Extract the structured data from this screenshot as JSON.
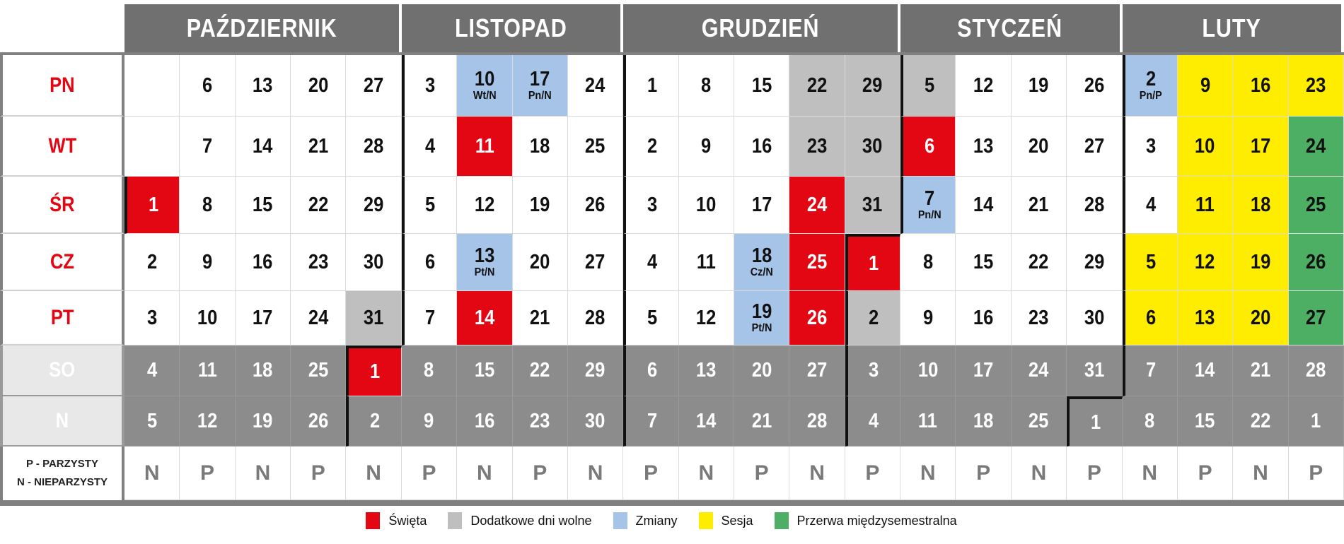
{
  "months": [
    {
      "name": "PAŹDZIERNIK",
      "span": 5
    },
    {
      "name": "LISTOPAD",
      "span": 4
    },
    {
      "name": "GRUDZIEŃ",
      "span": 5
    },
    {
      "name": "STYCZEŃ",
      "span": 4
    },
    {
      "name": "LUTY",
      "span": 4
    }
  ],
  "weekdays": [
    "PN",
    "WT",
    "ŚR",
    "CZ",
    "PT",
    "SO",
    "N"
  ],
  "parity_label": [
    "P - PARZYSTY",
    "N - NIEPARZYSTY"
  ],
  "colors": {
    "red": "#e30613",
    "gray": "#bfbfbf",
    "blue": "#a6c3e8",
    "yellow": "#ffed00",
    "green": "#4caf64",
    "weekend": "#8c8c8c",
    "header": "#707070"
  },
  "columns": [
    {
      "parity": "N",
      "days": [
        {
          "d": "",
          "m": 0
        },
        {
          "d": "",
          "m": 0
        },
        {
          "d": "1",
          "m": 0,
          "c": "red"
        },
        {
          "d": "2",
          "m": 0
        },
        {
          "d": "3",
          "m": 0
        },
        {
          "d": "4",
          "m": 0
        },
        {
          "d": "5",
          "m": 0
        }
      ]
    },
    {
      "parity": "P",
      "days": [
        {
          "d": "6",
          "m": 0
        },
        {
          "d": "7",
          "m": 0
        },
        {
          "d": "8",
          "m": 0
        },
        {
          "d": "9",
          "m": 0
        },
        {
          "d": "10",
          "m": 0
        },
        {
          "d": "11",
          "m": 0
        },
        {
          "d": "12",
          "m": 0
        }
      ]
    },
    {
      "parity": "N",
      "days": [
        {
          "d": "13",
          "m": 0
        },
        {
          "d": "14",
          "m": 0
        },
        {
          "d": "15",
          "m": 0
        },
        {
          "d": "16",
          "m": 0
        },
        {
          "d": "17",
          "m": 0
        },
        {
          "d": "18",
          "m": 0
        },
        {
          "d": "19",
          "m": 0
        }
      ]
    },
    {
      "parity": "P",
      "days": [
        {
          "d": "20",
          "m": 0
        },
        {
          "d": "21",
          "m": 0
        },
        {
          "d": "22",
          "m": 0
        },
        {
          "d": "23",
          "m": 0
        },
        {
          "d": "24",
          "m": 0
        },
        {
          "d": "25",
          "m": 0
        },
        {
          "d": "26",
          "m": 0
        }
      ]
    },
    {
      "parity": "N",
      "days": [
        {
          "d": "27",
          "m": 0
        },
        {
          "d": "28",
          "m": 0
        },
        {
          "d": "29",
          "m": 0
        },
        {
          "d": "30",
          "m": 0
        },
        {
          "d": "31",
          "m": 0,
          "c": "gray"
        },
        {
          "d": "1",
          "m": 1,
          "c": "red"
        },
        {
          "d": "2",
          "m": 1
        }
      ]
    },
    {
      "parity": "P",
      "days": [
        {
          "d": "3",
          "m": 1
        },
        {
          "d": "4",
          "m": 1
        },
        {
          "d": "5",
          "m": 1
        },
        {
          "d": "6",
          "m": 1
        },
        {
          "d": "7",
          "m": 1
        },
        {
          "d": "8",
          "m": 1
        },
        {
          "d": "9",
          "m": 1
        }
      ]
    },
    {
      "parity": "N",
      "days": [
        {
          "d": "10",
          "m": 1,
          "c": "blue",
          "sub": "Wt/N"
        },
        {
          "d": "11",
          "m": 1,
          "c": "red"
        },
        {
          "d": "12",
          "m": 1
        },
        {
          "d": "13",
          "m": 1,
          "c": "blue",
          "sub": "Pt/N"
        },
        {
          "d": "14",
          "m": 1,
          "c": "red"
        },
        {
          "d": "15",
          "m": 1
        },
        {
          "d": "16",
          "m": 1
        }
      ]
    },
    {
      "parity": "P",
      "days": [
        {
          "d": "17",
          "m": 1,
          "c": "blue",
          "sub": "Pn/N"
        },
        {
          "d": "18",
          "m": 1
        },
        {
          "d": "19",
          "m": 1
        },
        {
          "d": "20",
          "m": 1
        },
        {
          "d": "21",
          "m": 1
        },
        {
          "d": "22",
          "m": 1
        },
        {
          "d": "23",
          "m": 1
        }
      ]
    },
    {
      "parity": "N",
      "days": [
        {
          "d": "24",
          "m": 1
        },
        {
          "d": "25",
          "m": 1
        },
        {
          "d": "26",
          "m": 1
        },
        {
          "d": "27",
          "m": 1
        },
        {
          "d": "28",
          "m": 1
        },
        {
          "d": "29",
          "m": 1
        },
        {
          "d": "30",
          "m": 1
        }
      ]
    },
    {
      "parity": "P",
      "days": [
        {
          "d": "1",
          "m": 2
        },
        {
          "d": "2",
          "m": 2
        },
        {
          "d": "3",
          "m": 2
        },
        {
          "d": "4",
          "m": 2
        },
        {
          "d": "5",
          "m": 2
        },
        {
          "d": "6",
          "m": 2
        },
        {
          "d": "7",
          "m": 2
        }
      ]
    },
    {
      "parity": "N",
      "days": [
        {
          "d": "8",
          "m": 2
        },
        {
          "d": "9",
          "m": 2
        },
        {
          "d": "10",
          "m": 2
        },
        {
          "d": "11",
          "m": 2
        },
        {
          "d": "12",
          "m": 2
        },
        {
          "d": "13",
          "m": 2
        },
        {
          "d": "14",
          "m": 2
        }
      ]
    },
    {
      "parity": "P",
      "days": [
        {
          "d": "15",
          "m": 2
        },
        {
          "d": "16",
          "m": 2
        },
        {
          "d": "17",
          "m": 2
        },
        {
          "d": "18",
          "m": 2,
          "c": "blue",
          "sub": "Cz/N"
        },
        {
          "d": "19",
          "m": 2,
          "c": "blue",
          "sub": "Pt/N"
        },
        {
          "d": "20",
          "m": 2
        },
        {
          "d": "21",
          "m": 2
        }
      ]
    },
    {
      "parity": "N",
      "days": [
        {
          "d": "22",
          "m": 2,
          "c": "gray"
        },
        {
          "d": "23",
          "m": 2,
          "c": "gray"
        },
        {
          "d": "24",
          "m": 2,
          "c": "red"
        },
        {
          "d": "25",
          "m": 2,
          "c": "red"
        },
        {
          "d": "26",
          "m": 2,
          "c": "red"
        },
        {
          "d": "27",
          "m": 2
        },
        {
          "d": "28",
          "m": 2
        }
      ]
    },
    {
      "parity": "P",
      "days": [
        {
          "d": "29",
          "m": 2,
          "c": "gray"
        },
        {
          "d": "30",
          "m": 2,
          "c": "gray"
        },
        {
          "d": "31",
          "m": 2,
          "c": "gray"
        },
        {
          "d": "1",
          "m": 3,
          "c": "red"
        },
        {
          "d": "2",
          "m": 3,
          "c": "gray"
        },
        {
          "d": "3",
          "m": 3
        },
        {
          "d": "4",
          "m": 3
        }
      ]
    },
    {
      "parity": "N",
      "days": [
        {
          "d": "5",
          "m": 3,
          "c": "gray"
        },
        {
          "d": "6",
          "m": 3,
          "c": "red"
        },
        {
          "d": "7",
          "m": 3,
          "c": "blue",
          "sub": "Pn/N"
        },
        {
          "d": "8",
          "m": 3
        },
        {
          "d": "9",
          "m": 3
        },
        {
          "d": "10",
          "m": 3
        },
        {
          "d": "11",
          "m": 3
        }
      ]
    },
    {
      "parity": "P",
      "days": [
        {
          "d": "12",
          "m": 3
        },
        {
          "d": "13",
          "m": 3
        },
        {
          "d": "14",
          "m": 3
        },
        {
          "d": "15",
          "m": 3
        },
        {
          "d": "16",
          "m": 3
        },
        {
          "d": "17",
          "m": 3
        },
        {
          "d": "18",
          "m": 3
        }
      ]
    },
    {
      "parity": "N",
      "days": [
        {
          "d": "19",
          "m": 3
        },
        {
          "d": "20",
          "m": 3
        },
        {
          "d": "21",
          "m": 3
        },
        {
          "d": "22",
          "m": 3
        },
        {
          "d": "23",
          "m": 3
        },
        {
          "d": "24",
          "m": 3
        },
        {
          "d": "25",
          "m": 3
        }
      ]
    },
    {
      "parity": "P",
      "days": [
        {
          "d": "26",
          "m": 3
        },
        {
          "d": "27",
          "m": 3
        },
        {
          "d": "28",
          "m": 3
        },
        {
          "d": "29",
          "m": 3
        },
        {
          "d": "30",
          "m": 3
        },
        {
          "d": "31",
          "m": 3
        },
        {
          "d": "1",
          "m": 4
        }
      ]
    },
    {
      "parity": "N",
      "days": [
        {
          "d": "2",
          "m": 4,
          "c": "blue",
          "sub": "Pn/P"
        },
        {
          "d": "3",
          "m": 4
        },
        {
          "d": "4",
          "m": 4
        },
        {
          "d": "5",
          "m": 4,
          "c": "yellow"
        },
        {
          "d": "6",
          "m": 4,
          "c": "yellow"
        },
        {
          "d": "7",
          "m": 4
        },
        {
          "d": "8",
          "m": 4
        }
      ]
    },
    {
      "parity": "P",
      "days": [
        {
          "d": "9",
          "m": 4,
          "c": "yellow"
        },
        {
          "d": "10",
          "m": 4,
          "c": "yellow"
        },
        {
          "d": "11",
          "m": 4,
          "c": "yellow"
        },
        {
          "d": "12",
          "m": 4,
          "c": "yellow"
        },
        {
          "d": "13",
          "m": 4,
          "c": "yellow"
        },
        {
          "d": "14",
          "m": 4
        },
        {
          "d": "15",
          "m": 4
        }
      ]
    },
    {
      "parity": "N",
      "days": [
        {
          "d": "16",
          "m": 4,
          "c": "yellow"
        },
        {
          "d": "17",
          "m": 4,
          "c": "yellow"
        },
        {
          "d": "18",
          "m": 4,
          "c": "yellow"
        },
        {
          "d": "19",
          "m": 4,
          "c": "yellow"
        },
        {
          "d": "20",
          "m": 4,
          "c": "yellow"
        },
        {
          "d": "21",
          "m": 4
        },
        {
          "d": "22",
          "m": 4
        }
      ]
    },
    {
      "parity": "P",
      "days": [
        {
          "d": "23",
          "m": 4,
          "c": "yellow"
        },
        {
          "d": "24",
          "m": 4,
          "c": "green"
        },
        {
          "d": "25",
          "m": 4,
          "c": "green"
        },
        {
          "d": "26",
          "m": 4,
          "c": "green"
        },
        {
          "d": "27",
          "m": 4,
          "c": "green"
        },
        {
          "d": "28",
          "m": 4
        },
        {
          "d": "1",
          "m": 4
        }
      ]
    }
  ],
  "legend": [
    {
      "label": "Święta",
      "color": "#e30613"
    },
    {
      "label": "Dodatkowe dni wolne",
      "color": "#bfbfbf"
    },
    {
      "label": "Zmiany",
      "color": "#a6c3e8"
    },
    {
      "label": "Sesja",
      "color": "#ffed00"
    },
    {
      "label": "Przerwa międzysemestralna",
      "color": "#4caf64"
    }
  ]
}
